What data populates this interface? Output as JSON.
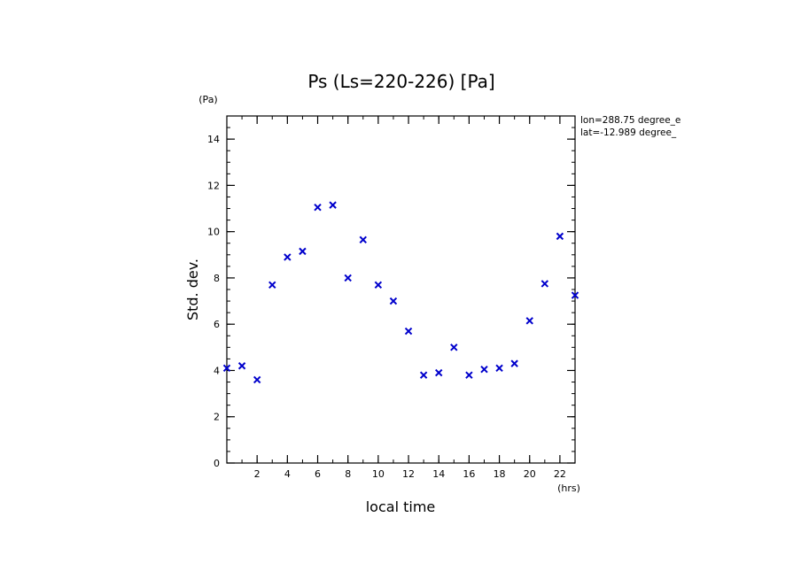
{
  "chart_data": {
    "type": "scatter",
    "title": "Ps (Ls=220-226) [Pa]",
    "xlabel": "local time",
    "ylabel": "Std. dev.",
    "x_unit": "(hrs)",
    "y_unit": "(Pa)",
    "xlim": [
      0,
      23
    ],
    "ylim": [
      0,
      15
    ],
    "xticks": [
      2,
      4,
      6,
      8,
      10,
      12,
      14,
      16,
      18,
      20,
      22
    ],
    "yticks": [
      0,
      2,
      4,
      6,
      8,
      10,
      12,
      14
    ],
    "info": [
      "lon=288.75 degree_e",
      "lat=-12.989 degree_"
    ],
    "marker": "x",
    "marker_color": "#0000cc",
    "series": [
      {
        "x": [
          0,
          1,
          2,
          3,
          4,
          5,
          6,
          7,
          8,
          9,
          10,
          11,
          12,
          13,
          14,
          15,
          16,
          17,
          18,
          19,
          20,
          21,
          22,
          23
        ],
        "y": [
          4.1,
          4.2,
          3.6,
          7.7,
          8.9,
          9.15,
          11.05,
          11.15,
          8.0,
          9.65,
          7.7,
          7.0,
          5.7,
          3.8,
          3.9,
          5.0,
          3.8,
          4.05,
          4.1,
          4.3,
          6.15,
          7.75,
          9.8,
          7.25
        ]
      }
    ]
  }
}
